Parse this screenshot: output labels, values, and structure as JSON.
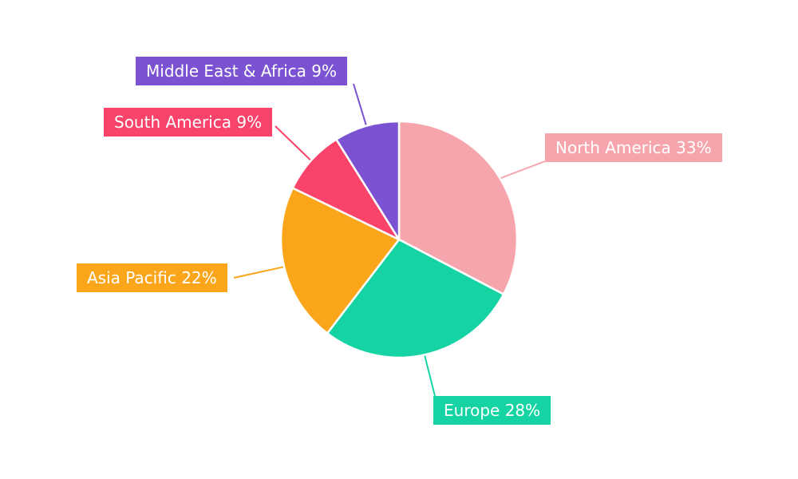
{
  "chart_data": {
    "type": "pie",
    "title": "",
    "categories": [
      "North America",
      "Europe",
      "Asia Pacific",
      "South America",
      "Middle East & Africa"
    ],
    "values": [
      33,
      28,
      22,
      9,
      9
    ],
    "unit": "%",
    "colors": [
      "#F7A5AC",
      "#15D3A2",
      "#FAA51A",
      "#F9436A",
      "#7B52D1"
    ],
    "labels_display": [
      "North America 33%",
      "Europe 28%",
      "Asia Pacific 22%",
      "South America 9%",
      "Middle East & Africa 9%"
    ],
    "start_angle_deg": 0,
    "direction": "clockwise",
    "background": "#FFFFFF",
    "legend_position": "callout-labels",
    "slice_border_color": "#FFFFFF"
  }
}
